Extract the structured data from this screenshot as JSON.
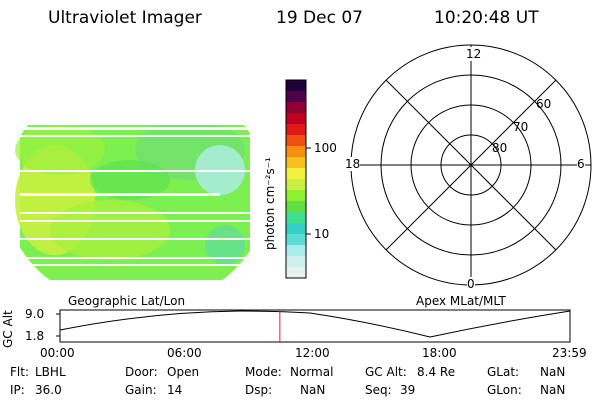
{
  "header": {
    "instrument": "Ultraviolet Imager",
    "date": "19 Dec 07",
    "time": "10:20:48 UT"
  },
  "colorbar": {
    "label": "photon cm⁻²s⁻¹",
    "ticks": [
      "100",
      "10"
    ],
    "colors": [
      "#e8f0f0",
      "#d0f0ee",
      "#a8ecec",
      "#60dcd8",
      "#34d0c8",
      "#40e090",
      "#60e040",
      "#8ff030",
      "#c8f040",
      "#f4f040",
      "#f6c020",
      "#f49010",
      "#ee5010",
      "#e01818",
      "#c00020",
      "#900030",
      "#50004a",
      "#200038"
    ]
  },
  "map_labels": {
    "geographic": "Geographic Lat/Lon",
    "apex": "Apex MLat/MLT"
  },
  "polar_plot": {
    "mlt_labels": {
      "top": "12",
      "left": "18",
      "right": "6",
      "bottom": "0"
    },
    "mlat_labels": [
      "60",
      "70",
      "80"
    ]
  },
  "timeline": {
    "ylabel": "GC Alt",
    "y_ticks": [
      "9.0",
      "1.8"
    ],
    "x_ticks": [
      "00:00",
      "06:00",
      "12:00",
      "18:00",
      "23:59"
    ],
    "current_time_fraction": 0.4311,
    "marker_color": "#e02020"
  },
  "info": {
    "flt_label": "Flt:",
    "flt_value": "LBHL",
    "ip_label": "IP:",
    "ip_value": "36.0",
    "door_label": "Door:",
    "door_value": "Open",
    "gain_label": "Gain:",
    "gain_value": "14",
    "mode_label": "Mode:",
    "mode_value": "Normal",
    "dsp_label": "Dsp:",
    "dsp_value": "NaN",
    "gcalt_label": "GC Alt:",
    "gcalt_value": "8.4 Re",
    "seq_label": "Seq:",
    "seq_value": "39",
    "glat_label": "GLat:",
    "glat_value": "NaN",
    "glon_label": "GLon:",
    "glon_value": "NaN"
  }
}
